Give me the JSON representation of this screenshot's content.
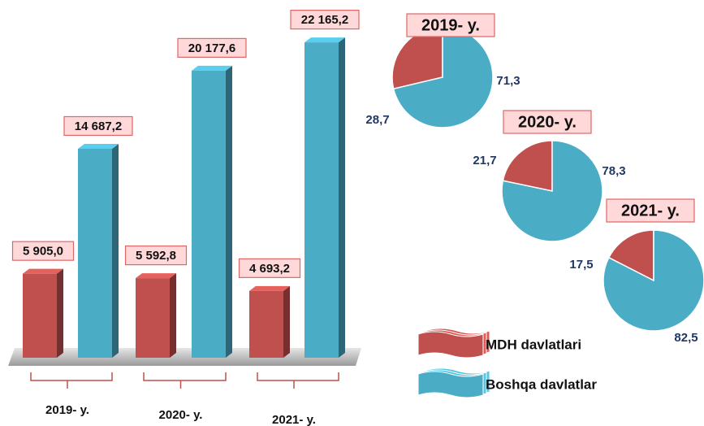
{
  "chart_data": [
    {
      "type": "bar",
      "categories": [
        "2019- y.",
        "2020- y.",
        "2021- y."
      ],
      "series": [
        {
          "name": "MDH davlatlari",
          "color": "#c0504d",
          "values": [
            5905.0,
            5592.8,
            4693.2
          ],
          "value_labels": [
            "5 905,0",
            "5 592,8",
            "4 693,2"
          ]
        },
        {
          "name": "Boshqa davlatlar",
          "color": "#4bacc6",
          "values": [
            14687.2,
            20177.6,
            22165.2
          ],
          "value_labels": [
            "14 687,2",
            "20 177,6",
            "22 165,2"
          ]
        }
      ]
    },
    {
      "type": "pie",
      "title": "2019- y.",
      "values": [
        28.7,
        71.3
      ],
      "value_labels": [
        "28,7",
        "71,3"
      ],
      "colors": [
        "#c0504d",
        "#4bacc6"
      ]
    },
    {
      "type": "pie",
      "title": "2020- y.",
      "values": [
        21.7,
        78.3
      ],
      "value_labels": [
        "21,7",
        "78,3"
      ],
      "colors": [
        "#c0504d",
        "#4bacc6"
      ]
    },
    {
      "type": "pie",
      "title": "2021- y.",
      "values": [
        17.5,
        82.5
      ],
      "value_labels": [
        "17,5",
        "82,5"
      ],
      "colors": [
        "#c0504d",
        "#4bacc6"
      ]
    }
  ]
}
